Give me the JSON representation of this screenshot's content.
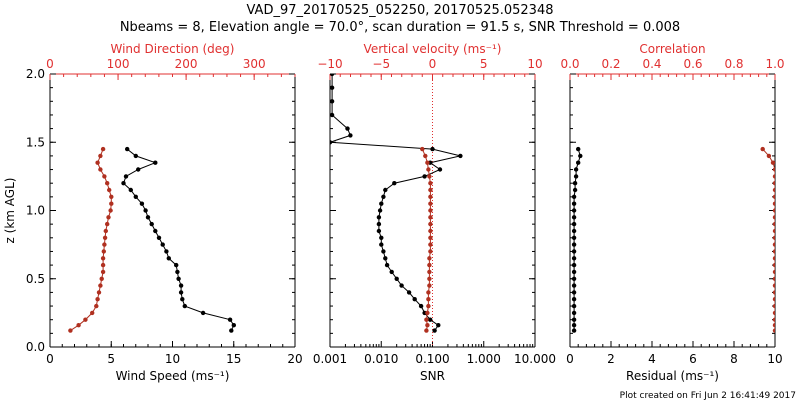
{
  "header": {
    "title_line1": "VAD_97_20170525_052250, 20170525.052348",
    "title_line2": "Nbeams = 8, Elevation angle = 70.0°, scan duration = 91.5 s, SNR Threshold = 0.008"
  },
  "footer": {
    "plot_created": "Plot created on Fri Jun  2 16:41:49 2017"
  },
  "colors": {
    "black": "#000000",
    "red": "#b03020",
    "axis_red": "#e03030"
  },
  "y_axis": {
    "label": "z (km AGL)",
    "ylim": [
      0.0,
      2.0
    ],
    "ticks": [
      "0.0",
      "0.5",
      "1.0",
      "1.5",
      "2.0"
    ]
  },
  "chart_data": [
    {
      "type": "line",
      "id": "wind",
      "bottom_axis": {
        "label": "Wind Speed (ms⁻¹)",
        "lim": [
          0,
          20
        ],
        "ticks": [
          "0",
          "5",
          "10",
          "15",
          "20"
        ]
      },
      "top_axis": {
        "label": "Wind Direction (deg)",
        "lim": [
          0,
          360
        ],
        "ticks": [
          "0",
          "100",
          "200",
          "300"
        ],
        "color": "#e03030"
      },
      "series": [
        {
          "name": "Wind Speed",
          "axis": "bottom",
          "color": "#000000",
          "z": [
            0.12,
            0.16,
            0.2,
            0.25,
            0.3,
            0.35,
            0.4,
            0.45,
            0.5,
            0.55,
            0.6,
            0.65,
            0.7,
            0.75,
            0.8,
            0.85,
            0.9,
            0.95,
            1.0,
            1.05,
            1.1,
            1.15,
            1.2,
            1.25,
            1.3,
            1.35,
            1.4,
            1.45
          ],
          "values": [
            14.8,
            15.0,
            14.7,
            12.5,
            11.0,
            10.8,
            10.7,
            10.7,
            10.5,
            10.4,
            10.3,
            9.7,
            9.5,
            9.2,
            8.9,
            8.6,
            8.3,
            8.0,
            7.8,
            7.5,
            7.0,
            6.6,
            6.0,
            6.2,
            7.2,
            8.6,
            7.0,
            6.3
          ]
        },
        {
          "name": "Wind Direction",
          "axis": "top",
          "color": "#b03020",
          "z": [
            0.12,
            0.16,
            0.2,
            0.25,
            0.3,
            0.35,
            0.4,
            0.45,
            0.5,
            0.55,
            0.6,
            0.65,
            0.7,
            0.75,
            0.8,
            0.85,
            0.9,
            0.95,
            1.0,
            1.05,
            1.1,
            1.15,
            1.2,
            1.25,
            1.3,
            1.35,
            1.4,
            1.45
          ],
          "values": [
            30,
            42,
            52,
            62,
            68,
            70,
            72,
            74,
            76,
            78,
            78,
            78,
            79,
            80,
            81,
            82,
            84,
            86,
            89,
            90,
            90,
            87,
            84,
            80,
            74,
            70,
            74,
            78
          ]
        }
      ]
    },
    {
      "type": "line",
      "id": "snr",
      "bottom_axis": {
        "label": "SNR",
        "scale": "log",
        "lim": [
          0.001,
          10
        ],
        "ticks": [
          "0.001",
          "0.010",
          "0.100",
          "1.000",
          "10.000"
        ]
      },
      "top_axis": {
        "label": "Vertical velocity (ms⁻¹)",
        "lim": [
          -10,
          10
        ],
        "ticks": [
          "−10",
          "−5",
          "0",
          "5",
          "10"
        ],
        "color": "#e03030",
        "zero_line": 0
      },
      "series": [
        {
          "name": "SNR",
          "axis": "bottom",
          "color": "#000000",
          "z": [
            0.12,
            0.16,
            0.2,
            0.25,
            0.3,
            0.35,
            0.4,
            0.45,
            0.5,
            0.55,
            0.6,
            0.65,
            0.7,
            0.75,
            0.8,
            0.85,
            0.9,
            0.95,
            1.0,
            1.05,
            1.1,
            1.15,
            1.2,
            1.25,
            1.3,
            1.35,
            1.4,
            1.45,
            1.5,
            1.55,
            1.6,
            1.7,
            1.8,
            1.9,
            2.0
          ],
          "values": [
            0.11,
            0.13,
            0.09,
            0.07,
            0.06,
            0.045,
            0.035,
            0.025,
            0.02,
            0.016,
            0.013,
            0.012,
            0.011,
            0.01,
            0.01,
            0.009,
            0.009,
            0.009,
            0.0095,
            0.01,
            0.011,
            0.012,
            0.018,
            0.07,
            0.14,
            0.09,
            0.35,
            0.1,
            0.001,
            0.0025,
            0.0022,
            0.0011,
            0.0011,
            0.0011,
            0.0011
          ]
        },
        {
          "name": "Vertical velocity",
          "axis": "top",
          "color": "#b03020",
          "z": [
            0.12,
            0.16,
            0.2,
            0.25,
            0.3,
            0.35,
            0.4,
            0.45,
            0.5,
            0.55,
            0.6,
            0.65,
            0.7,
            0.75,
            0.8,
            0.85,
            0.9,
            0.95,
            1.0,
            1.05,
            1.1,
            1.15,
            1.2,
            1.25,
            1.3,
            1.35,
            1.4,
            1.45
          ],
          "values": [
            -0.6,
            -0.5,
            -0.6,
            -0.5,
            -0.4,
            -0.4,
            -0.4,
            -0.3,
            -0.3,
            -0.3,
            -0.3,
            -0.3,
            -0.2,
            -0.2,
            -0.2,
            -0.2,
            -0.2,
            -0.2,
            -0.2,
            -0.2,
            -0.2,
            -0.2,
            -0.2,
            -0.3,
            -0.4,
            -0.5,
            -0.7,
            -1.0
          ]
        }
      ]
    },
    {
      "type": "line",
      "id": "residual",
      "bottom_axis": {
        "label": "Residual (ms⁻¹)",
        "lim": [
          0,
          10
        ],
        "ticks": [
          "0",
          "2",
          "4",
          "6",
          "8",
          "10"
        ]
      },
      "top_axis": {
        "label": "Correlation",
        "lim": [
          0,
          1
        ],
        "ticks": [
          "0.0",
          "0.2",
          "0.4",
          "0.6",
          "0.8",
          "1.0"
        ],
        "color": "#e03030"
      },
      "series": [
        {
          "name": "Residual",
          "axis": "bottom",
          "color": "#000000",
          "z": [
            0.12,
            0.16,
            0.2,
            0.25,
            0.3,
            0.35,
            0.4,
            0.45,
            0.5,
            0.55,
            0.6,
            0.65,
            0.7,
            0.75,
            0.8,
            0.85,
            0.9,
            0.95,
            1.0,
            1.05,
            1.1,
            1.15,
            1.2,
            1.25,
            1.3,
            1.35,
            1.4,
            1.45
          ],
          "values": [
            0.2,
            0.2,
            0.2,
            0.2,
            0.2,
            0.2,
            0.2,
            0.2,
            0.2,
            0.2,
            0.2,
            0.2,
            0.2,
            0.2,
            0.2,
            0.2,
            0.2,
            0.2,
            0.2,
            0.2,
            0.2,
            0.25,
            0.25,
            0.3,
            0.3,
            0.4,
            0.5,
            0.4
          ]
        },
        {
          "name": "Correlation",
          "axis": "top",
          "color": "#b03020",
          "z": [
            0.12,
            0.16,
            0.2,
            0.25,
            0.3,
            0.35,
            0.4,
            0.45,
            0.5,
            0.55,
            0.6,
            0.65,
            0.7,
            0.75,
            0.8,
            0.85,
            0.9,
            0.95,
            1.0,
            1.05,
            1.1,
            1.15,
            1.2,
            1.25,
            1.3,
            1.35,
            1.4,
            1.45
          ],
          "values": [
            1.0,
            1.0,
            1.0,
            1.0,
            1.0,
            1.0,
            1.0,
            1.0,
            1.0,
            1.0,
            1.0,
            1.0,
            1.0,
            1.0,
            1.0,
            1.0,
            1.0,
            1.0,
            1.0,
            1.0,
            1.0,
            1.0,
            1.0,
            1.0,
            1.0,
            0.99,
            0.97,
            0.94
          ]
        }
      ]
    }
  ]
}
